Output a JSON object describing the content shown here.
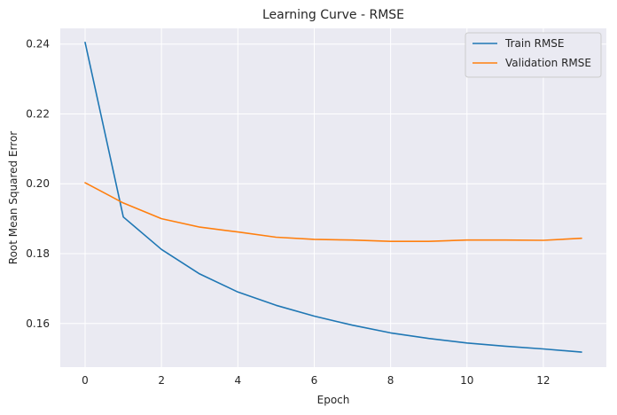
{
  "chart_data": {
    "type": "line",
    "title": "Learning Curve - RMSE",
    "xlabel": "Epoch",
    "ylabel": "Root Mean Squared Error",
    "x": [
      0,
      1,
      2,
      3,
      4,
      5,
      6,
      7,
      8,
      9,
      10,
      11,
      12,
      13
    ],
    "xlim": [
      -0.65,
      13.65
    ],
    "ylim": [
      0.1475,
      0.2445
    ],
    "xticks": [
      0,
      2,
      4,
      6,
      8,
      10,
      12
    ],
    "xtick_labels": [
      "0",
      "2",
      "4",
      "6",
      "8",
      "10",
      "12"
    ],
    "yticks": [
      0.16,
      0.18,
      0.2,
      0.22,
      0.24
    ],
    "ytick_labels": [
      "0.16",
      "0.18",
      "0.20",
      "0.22",
      "0.24"
    ],
    "grid": true,
    "legend_position": "top-right",
    "series": [
      {
        "name": "Train RMSE",
        "color": "#1f77b4",
        "values": [
          0.2405,
          0.1905,
          0.1812,
          0.1742,
          0.169,
          0.1652,
          0.1621,
          0.1595,
          0.1573,
          0.1557,
          0.1544,
          0.1535,
          0.1527,
          0.1518
        ]
      },
      {
        "name": "Validation RMSE",
        "color": "#ff7f0e",
        "values": [
          0.2003,
          0.1945,
          0.19,
          0.1876,
          0.1862,
          0.1847,
          0.1841,
          0.1839,
          0.1835,
          0.1835,
          0.1839,
          0.1839,
          0.1838,
          0.1844
        ]
      }
    ]
  }
}
